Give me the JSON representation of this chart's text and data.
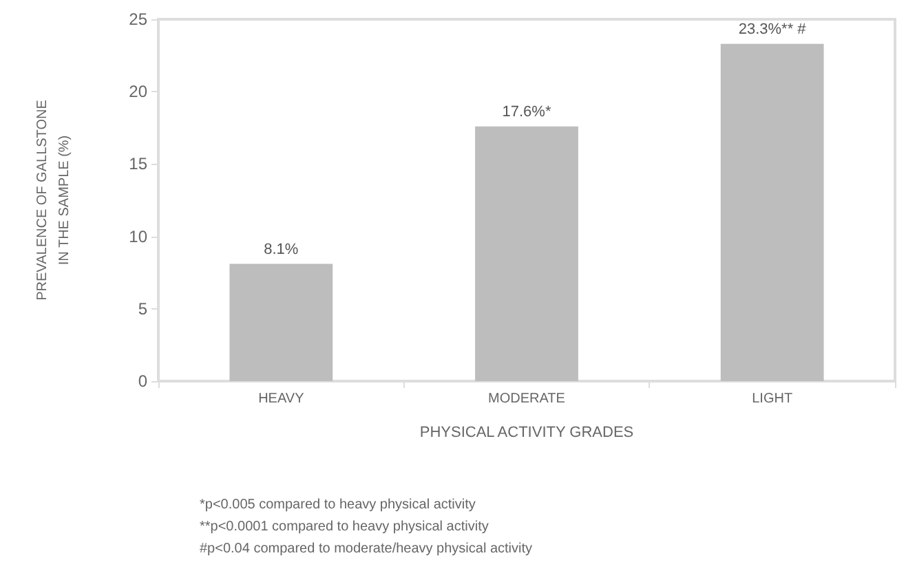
{
  "chart_data": {
    "type": "bar",
    "xlabel": "PHYSICAL ACTIVITY GRADES",
    "ylabel": "PREVALENCE OF GALLSTONE\nIN THE SAMPLE (%)",
    "categories": [
      "HEAVY",
      "MODERATE",
      "LIGHT"
    ],
    "values": [
      8.1,
      17.6,
      23.3
    ],
    "value_labels": [
      "8.1%",
      "17.6%*",
      "23.3%** #"
    ],
    "color": "#bdbdbd",
    "ylim": [
      0,
      25
    ],
    "yticks": [
      0,
      5,
      10,
      15,
      20,
      25
    ],
    "grid": false,
    "annotations": [
      "*p<0.005 compared to heavy physical activity",
      "**p<0.0001 compared to heavy physical activity",
      "#p<0.04 compared to moderate/heavy physical activity"
    ]
  }
}
